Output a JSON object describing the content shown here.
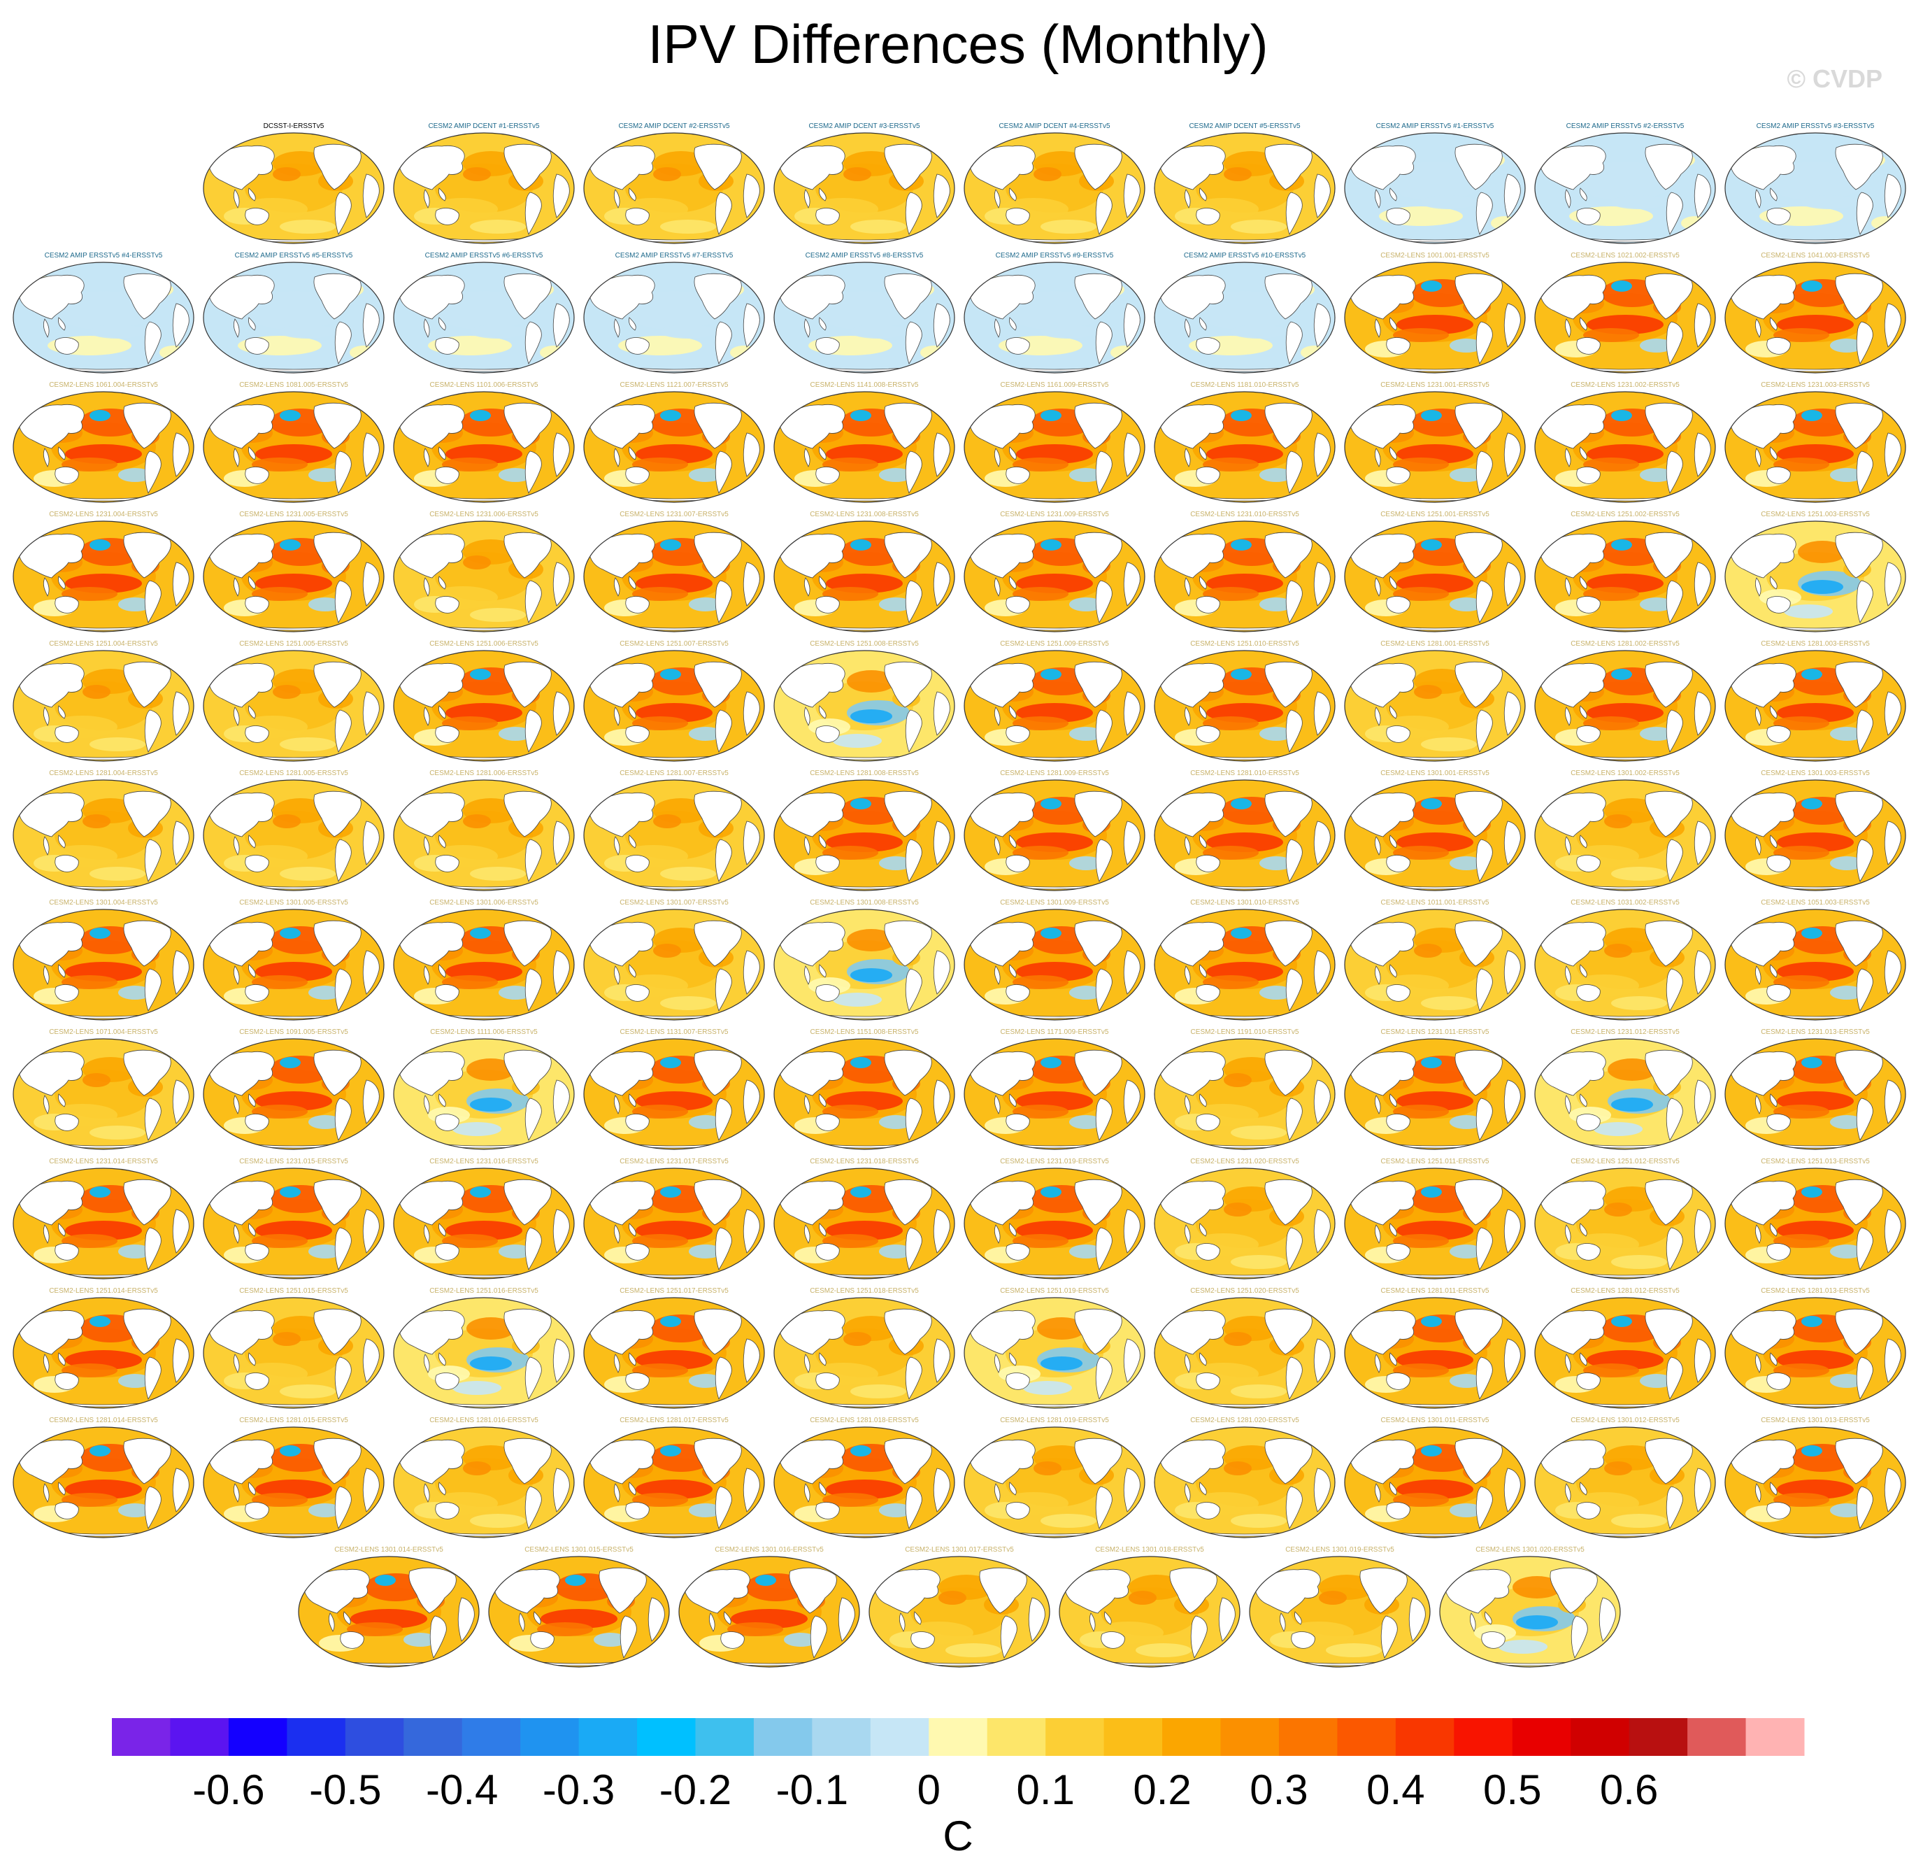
{
  "title": "IPV Differences (Monthly)",
  "watermark": "© CVDP",
  "colors": {
    "land": "#ffffff",
    "coast": "#444444",
    "title_obs": "#000000",
    "title_amip": "#1f6a8c",
    "title_lens": "#c8b26a"
  },
  "chart_data": {
    "type": "heatmap",
    "panel_kind": "global SST difference maps (Pacific-centered)",
    "colorbar": {
      "units": "C",
      "levels": [
        -0.65,
        -0.6,
        -0.55,
        -0.5,
        -0.45,
        -0.4,
        -0.35,
        -0.3,
        -0.25,
        -0.2,
        -0.15,
        -0.1,
        -0.05,
        0,
        0.05,
        0.1,
        0.15,
        0.2,
        0.25,
        0.3,
        0.35,
        0.4,
        0.45,
        0.5,
        0.55,
        0.6,
        0.65
      ],
      "tick_labels": [
        "-0.6",
        "-0.5",
        "-0.4",
        "-0.3",
        "-0.2",
        "-0.1",
        "0",
        "0.1",
        "0.2",
        "0.3",
        "0.4",
        "0.5",
        "0.6"
      ],
      "tick_values": [
        -0.6,
        -0.5,
        -0.4,
        -0.3,
        -0.2,
        -0.1,
        0,
        0.1,
        0.2,
        0.3,
        0.4,
        0.5,
        0.6
      ],
      "colors": [
        "#7a24e8",
        "#5b14f0",
        "#1400ff",
        "#1b2ff0",
        "#2e4ee0",
        "#3568dc",
        "#2f7ce8",
        "#1f93f0",
        "#1aaaf5",
        "#00c0ff",
        "#3ec0ee",
        "#84c9ec",
        "#a9d8f0",
        "#c6e6f6",
        "#fff9b0",
        "#fde66a",
        "#fccf35",
        "#fbbe18",
        "#fba600",
        "#fb9000",
        "#fb7500",
        "#fb5800",
        "#f93700",
        "#f81400",
        "#e80000",
        "#d00000",
        "#b81010",
        "#e05a5a",
        "#ffb3b3"
      ]
    },
    "rows": [
      [
        {
          "title": "DCSST-I-ERSSTv5",
          "group": "obs",
          "pattern": "warm"
        },
        {
          "title": "CESM2 AMIP DCENT #1-ERSSTv5",
          "group": "amip",
          "pattern": "warm"
        },
        {
          "title": "CESM2 AMIP DCENT #2-ERSSTv5",
          "group": "amip",
          "pattern": "warm"
        },
        {
          "title": "CESM2 AMIP DCENT #3-ERSSTv5",
          "group": "amip",
          "pattern": "warm"
        },
        {
          "title": "CESM2 AMIP DCENT #4-ERSSTv5",
          "group": "amip",
          "pattern": "warm"
        },
        {
          "title": "CESM2 AMIP DCENT #5-ERSSTv5",
          "group": "amip",
          "pattern": "warm"
        },
        {
          "title": "CESM2 AMIP ERSSTv5 #1-ERSSTv5",
          "group": "amip",
          "pattern": "neutral"
        },
        {
          "title": "CESM2 AMIP ERSSTv5 #2-ERSSTv5",
          "group": "amip",
          "pattern": "neutral"
        },
        {
          "title": "CESM2 AMIP ERSSTv5 #3-ERSSTv5",
          "group": "amip",
          "pattern": "neutral"
        }
      ],
      [
        {
          "title": "CESM2 AMIP ERSSTv5 #4-ERSSTv5",
          "group": "amip",
          "pattern": "neutral"
        },
        {
          "title": "CESM2 AMIP ERSSTv5 #5-ERSSTv5",
          "group": "amip",
          "pattern": "neutral"
        },
        {
          "title": "CESM2 AMIP ERSSTv5 #6-ERSSTv5",
          "group": "amip",
          "pattern": "neutral"
        },
        {
          "title": "CESM2 AMIP ERSSTv5 #7-ERSSTv5",
          "group": "amip",
          "pattern": "neutral"
        },
        {
          "title": "CESM2 AMIP ERSSTv5 #8-ERSSTv5",
          "group": "amip",
          "pattern": "neutral"
        },
        {
          "title": "CESM2 AMIP ERSSTv5 #9-ERSSTv5",
          "group": "amip",
          "pattern": "neutral"
        },
        {
          "title": "CESM2 AMIP ERSSTv5 #10-ERSSTv5",
          "group": "amip",
          "pattern": "neutral"
        },
        {
          "title": "CESM2-LENS 1001.001-ERSSTv5",
          "group": "lens",
          "pattern": "hot"
        },
        {
          "title": "CESM2-LENS 1021.002-ERSSTv5",
          "group": "lens",
          "pattern": "hot"
        },
        {
          "title": "CESM2-LENS 1041.003-ERSSTv5",
          "group": "lens",
          "pattern": "hot"
        }
      ],
      [
        {
          "title": "CESM2-LENS 1061.004-ERSSTv5",
          "group": "lens",
          "pattern": "hot"
        },
        {
          "title": "CESM2-LENS 1081.005-ERSSTv5",
          "group": "lens",
          "pattern": "hot"
        },
        {
          "title": "CESM2-LENS 1101.006-ERSSTv5",
          "group": "lens",
          "pattern": "hot"
        },
        {
          "title": "CESM2-LENS 1121.007-ERSSTv5",
          "group": "lens",
          "pattern": "hot"
        },
        {
          "title": "CESM2-LENS 1141.008-ERSSTv5",
          "group": "lens",
          "pattern": "hot"
        },
        {
          "title": "CESM2-LENS 1161.009-ERSSTv5",
          "group": "lens",
          "pattern": "hot"
        },
        {
          "title": "CESM2-LENS 1181.010-ERSSTv5",
          "group": "lens",
          "pattern": "hot"
        },
        {
          "title": "CESM2-LENS 1231.001-ERSSTv5",
          "group": "lens",
          "pattern": "hot"
        },
        {
          "title": "CESM2-LENS 1231.002-ERSSTv5",
          "group": "lens",
          "pattern": "hot"
        },
        {
          "title": "CESM2-LENS 1231.003-ERSSTv5",
          "group": "lens",
          "pattern": "hot"
        }
      ],
      [
        {
          "title": "CESM2-LENS 1231.004-ERSSTv5",
          "group": "lens",
          "pattern": "hot"
        },
        {
          "title": "CESM2-LENS 1231.005-ERSSTv5",
          "group": "lens",
          "pattern": "hot"
        },
        {
          "title": "CESM2-LENS 1231.006-ERSSTv5",
          "group": "lens",
          "pattern": "warm"
        },
        {
          "title": "CESM2-LENS 1231.007-ERSSTv5",
          "group": "lens",
          "pattern": "hot"
        },
        {
          "title": "CESM2-LENS 1231.008-ERSSTv5",
          "group": "lens",
          "pattern": "hot"
        },
        {
          "title": "CESM2-LENS 1231.009-ERSSTv5",
          "group": "lens",
          "pattern": "hot"
        },
        {
          "title": "CESM2-LENS 1231.010-ERSSTv5",
          "group": "lens",
          "pattern": "hot"
        },
        {
          "title": "CESM2-LENS 1251.001-ERSSTv5",
          "group": "lens",
          "pattern": "hot"
        },
        {
          "title": "CESM2-LENS 1251.002-ERSSTv5",
          "group": "lens",
          "pattern": "hot"
        },
        {
          "title": "CESM2-LENS 1251.003-ERSSTv5",
          "group": "lens",
          "pattern": "cool"
        }
      ],
      [
        {
          "title": "CESM2-LENS 1251.004-ERSSTv5",
          "group": "lens",
          "pattern": "warm"
        },
        {
          "title": "CESM2-LENS 1251.005-ERSSTv5",
          "group": "lens",
          "pattern": "warm"
        },
        {
          "title": "CESM2-LENS 1251.006-ERSSTv5",
          "group": "lens",
          "pattern": "hot"
        },
        {
          "title": "CESM2-LENS 1251.007-ERSSTv5",
          "group": "lens",
          "pattern": "hot"
        },
        {
          "title": "CESM2-LENS 1251.008-ERSSTv5",
          "group": "lens",
          "pattern": "cool"
        },
        {
          "title": "CESM2-LENS 1251.009-ERSSTv5",
          "group": "lens",
          "pattern": "hot"
        },
        {
          "title": "CESM2-LENS 1251.010-ERSSTv5",
          "group": "lens",
          "pattern": "hot"
        },
        {
          "title": "CESM2-LENS 1281.001-ERSSTv5",
          "group": "lens",
          "pattern": "warm"
        },
        {
          "title": "CESM2-LENS 1281.002-ERSSTv5",
          "group": "lens",
          "pattern": "hot"
        },
        {
          "title": "CESM2-LENS 1281.003-ERSSTv5",
          "group": "lens",
          "pattern": "hot"
        }
      ],
      [
        {
          "title": "CESM2-LENS 1281.004-ERSSTv5",
          "group": "lens",
          "pattern": "warm"
        },
        {
          "title": "CESM2-LENS 1281.005-ERSSTv5",
          "group": "lens",
          "pattern": "warm"
        },
        {
          "title": "CESM2-LENS 1281.006-ERSSTv5",
          "group": "lens",
          "pattern": "warm"
        },
        {
          "title": "CESM2-LENS 1281.007-ERSSTv5",
          "group": "lens",
          "pattern": "warm"
        },
        {
          "title": "CESM2-LENS 1281.008-ERSSTv5",
          "group": "lens",
          "pattern": "hot"
        },
        {
          "title": "CESM2-LENS 1281.009-ERSSTv5",
          "group": "lens",
          "pattern": "hot"
        },
        {
          "title": "CESM2-LENS 1281.010-ERSSTv5",
          "group": "lens",
          "pattern": "hot"
        },
        {
          "title": "CESM2-LENS 1301.001-ERSSTv5",
          "group": "lens",
          "pattern": "hot"
        },
        {
          "title": "CESM2-LENS 1301.002-ERSSTv5",
          "group": "lens",
          "pattern": "warm"
        },
        {
          "title": "CESM2-LENS 1301.003-ERSSTv5",
          "group": "lens",
          "pattern": "hot"
        }
      ],
      [
        {
          "title": "CESM2-LENS 1301.004-ERSSTv5",
          "group": "lens",
          "pattern": "hot"
        },
        {
          "title": "CESM2-LENS 1301.005-ERSSTv5",
          "group": "lens",
          "pattern": "hot"
        },
        {
          "title": "CESM2-LENS 1301.006-ERSSTv5",
          "group": "lens",
          "pattern": "hot"
        },
        {
          "title": "CESM2-LENS 1301.007-ERSSTv5",
          "group": "lens",
          "pattern": "warm"
        },
        {
          "title": "CESM2-LENS 1301.008-ERSSTv5",
          "group": "lens",
          "pattern": "cool"
        },
        {
          "title": "CESM2-LENS 1301.009-ERSSTv5",
          "group": "lens",
          "pattern": "hot"
        },
        {
          "title": "CESM2-LENS 1301.010-ERSSTv5",
          "group": "lens",
          "pattern": "hot"
        },
        {
          "title": "CESM2-LENS 1011.001-ERSSTv5",
          "group": "lens",
          "pattern": "warm"
        },
        {
          "title": "CESM2-LENS 1031.002-ERSSTv5",
          "group": "lens",
          "pattern": "warm"
        },
        {
          "title": "CESM2-LENS 1051.003-ERSSTv5",
          "group": "lens",
          "pattern": "hot"
        }
      ],
      [
        {
          "title": "CESM2-LENS 1071.004-ERSSTv5",
          "group": "lens",
          "pattern": "warm"
        },
        {
          "title": "CESM2-LENS 1091.005-ERSSTv5",
          "group": "lens",
          "pattern": "hot"
        },
        {
          "title": "CESM2-LENS 1111.006-ERSSTv5",
          "group": "lens",
          "pattern": "cool"
        },
        {
          "title": "CESM2-LENS 1131.007-ERSSTv5",
          "group": "lens",
          "pattern": "hot"
        },
        {
          "title": "CESM2-LENS 1151.008-ERSSTv5",
          "group": "lens",
          "pattern": "hot"
        },
        {
          "title": "CESM2-LENS 1171.009-ERSSTv5",
          "group": "lens",
          "pattern": "hot"
        },
        {
          "title": "CESM2-LENS 1191.010-ERSSTv5",
          "group": "lens",
          "pattern": "warm"
        },
        {
          "title": "CESM2-LENS 1231.011-ERSSTv5",
          "group": "lens",
          "pattern": "hot"
        },
        {
          "title": "CESM2-LENS 1231.012-ERSSTv5",
          "group": "lens",
          "pattern": "cool"
        },
        {
          "title": "CESM2-LENS 1231.013-ERSSTv5",
          "group": "lens",
          "pattern": "hot"
        }
      ],
      [
        {
          "title": "CESM2-LENS 1231.014-ERSSTv5",
          "group": "lens",
          "pattern": "hot"
        },
        {
          "title": "CESM2-LENS 1231.015-ERSSTv5",
          "group": "lens",
          "pattern": "hot"
        },
        {
          "title": "CESM2-LENS 1231.016-ERSSTv5",
          "group": "lens",
          "pattern": "hot"
        },
        {
          "title": "CESM2-LENS 1231.017-ERSSTv5",
          "group": "lens",
          "pattern": "hot"
        },
        {
          "title": "CESM2-LENS 1231.018-ERSSTv5",
          "group": "lens",
          "pattern": "hot"
        },
        {
          "title": "CESM2-LENS 1231.019-ERSSTv5",
          "group": "lens",
          "pattern": "hot"
        },
        {
          "title": "CESM2-LENS 1231.020-ERSSTv5",
          "group": "lens",
          "pattern": "warm"
        },
        {
          "title": "CESM2-LENS 1251.011-ERSSTv5",
          "group": "lens",
          "pattern": "hot"
        },
        {
          "title": "CESM2-LENS 1251.012-ERSSTv5",
          "group": "lens",
          "pattern": "warm"
        },
        {
          "title": "CESM2-LENS 1251.013-ERSSTv5",
          "group": "lens",
          "pattern": "hot"
        }
      ],
      [
        {
          "title": "CESM2-LENS 1251.014-ERSSTv5",
          "group": "lens",
          "pattern": "hot"
        },
        {
          "title": "CESM2-LENS 1251.015-ERSSTv5",
          "group": "lens",
          "pattern": "warm"
        },
        {
          "title": "CESM2-LENS 1251.016-ERSSTv5",
          "group": "lens",
          "pattern": "cool"
        },
        {
          "title": "CESM2-LENS 1251.017-ERSSTv5",
          "group": "lens",
          "pattern": "hot"
        },
        {
          "title": "CESM2-LENS 1251.018-ERSSTv5",
          "group": "lens",
          "pattern": "warm"
        },
        {
          "title": "CESM2-LENS 1251.019-ERSSTv5",
          "group": "lens",
          "pattern": "cool"
        },
        {
          "title": "CESM2-LENS 1251.020-ERSSTv5",
          "group": "lens",
          "pattern": "warm"
        },
        {
          "title": "CESM2-LENS 1281.011-ERSSTv5",
          "group": "lens",
          "pattern": "hot"
        },
        {
          "title": "CESM2-LENS 1281.012-ERSSTv5",
          "group": "lens",
          "pattern": "hot"
        },
        {
          "title": "CESM2-LENS 1281.013-ERSSTv5",
          "group": "lens",
          "pattern": "hot"
        }
      ],
      [
        {
          "title": "CESM2-LENS 1281.014-ERSSTv5",
          "group": "lens",
          "pattern": "hot"
        },
        {
          "title": "CESM2-LENS 1281.015-ERSSTv5",
          "group": "lens",
          "pattern": "hot"
        },
        {
          "title": "CESM2-LENS 1281.016-ERSSTv5",
          "group": "lens",
          "pattern": "warm"
        },
        {
          "title": "CESM2-LENS 1281.017-ERSSTv5",
          "group": "lens",
          "pattern": "hot"
        },
        {
          "title": "CESM2-LENS 1281.018-ERSSTv5",
          "group": "lens",
          "pattern": "hot"
        },
        {
          "title": "CESM2-LENS 1281.019-ERSSTv5",
          "group": "lens",
          "pattern": "warm"
        },
        {
          "title": "CESM2-LENS 1281.020-ERSSTv5",
          "group": "lens",
          "pattern": "warm"
        },
        {
          "title": "CESM2-LENS 1301.011-ERSSTv5",
          "group": "lens",
          "pattern": "hot"
        },
        {
          "title": "CESM2-LENS 1301.012-ERSSTv5",
          "group": "lens",
          "pattern": "warm"
        },
        {
          "title": "CESM2-LENS 1301.013-ERSSTv5",
          "group": "lens",
          "pattern": "hot"
        }
      ],
      [
        {
          "title": "CESM2-LENS 1301.014-ERSSTv5",
          "group": "lens",
          "pattern": "hot"
        },
        {
          "title": "CESM2-LENS 1301.015-ERSSTv5",
          "group": "lens",
          "pattern": "hot"
        },
        {
          "title": "CESM2-LENS 1301.016-ERSSTv5",
          "group": "lens",
          "pattern": "hot"
        },
        {
          "title": "CESM2-LENS 1301.017-ERSSTv5",
          "group": "lens",
          "pattern": "warm"
        },
        {
          "title": "CESM2-LENS 1301.018-ERSSTv5",
          "group": "lens",
          "pattern": "warm"
        },
        {
          "title": "CESM2-LENS 1301.019-ERSSTv5",
          "group": "lens",
          "pattern": "warm"
        },
        {
          "title": "CESM2-LENS 1301.020-ERSSTv5",
          "group": "lens",
          "pattern": "cool"
        }
      ]
    ]
  }
}
